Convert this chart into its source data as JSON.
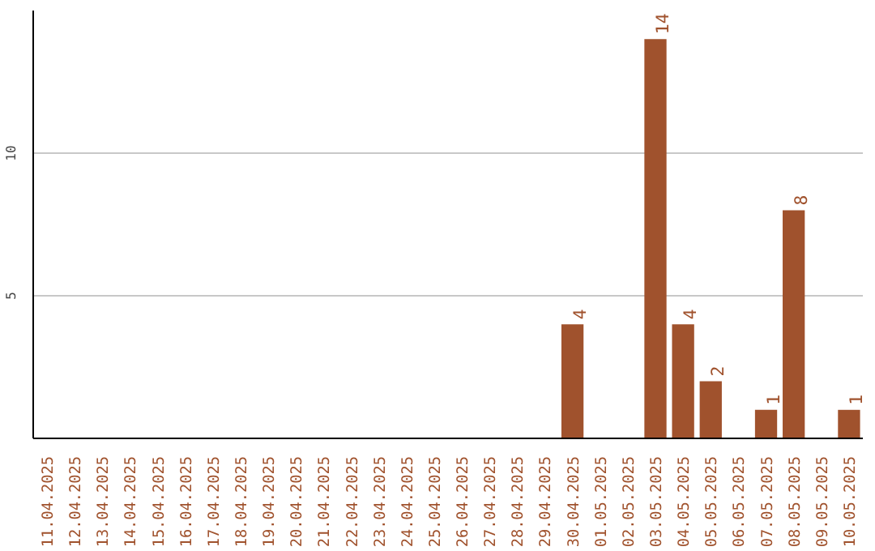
{
  "chart_data": {
    "type": "bar",
    "categories": [
      "11.04.2025",
      "12.04.2025",
      "13.04.2025",
      "14.04.2025",
      "15.04.2025",
      "16.04.2025",
      "17.04.2025",
      "18.04.2025",
      "19.04.2025",
      "20.04.2025",
      "21.04.2025",
      "22.04.2025",
      "23.04.2025",
      "24.04.2025",
      "25.04.2025",
      "26.04.2025",
      "27.04.2025",
      "28.04.2025",
      "29.04.2025",
      "30.04.2025",
      "01.05.2025",
      "02.05.2025",
      "03.05.2025",
      "04.05.2025",
      "05.05.2025",
      "06.05.2025",
      "07.05.2025",
      "08.05.2025",
      "09.05.2025",
      "10.05.2025"
    ],
    "values": [
      0,
      0,
      0,
      0,
      0,
      0,
      0,
      0,
      0,
      0,
      0,
      0,
      0,
      0,
      0,
      0,
      0,
      0,
      0,
      4,
      0,
      0,
      14,
      4,
      2,
      0,
      1,
      8,
      0,
      1
    ],
    "value_labels": [
      null,
      null,
      null,
      null,
      null,
      null,
      null,
      null,
      null,
      null,
      null,
      null,
      null,
      null,
      null,
      null,
      null,
      null,
      null,
      "4",
      null,
      null,
      "14",
      "4",
      "2",
      null,
      "1",
      "8",
      null,
      "1"
    ],
    "color": "#a0522d",
    "ylim": [
      0,
      15
    ],
    "yticks": [
      5,
      10
    ],
    "grid": "y",
    "legend": false
  }
}
